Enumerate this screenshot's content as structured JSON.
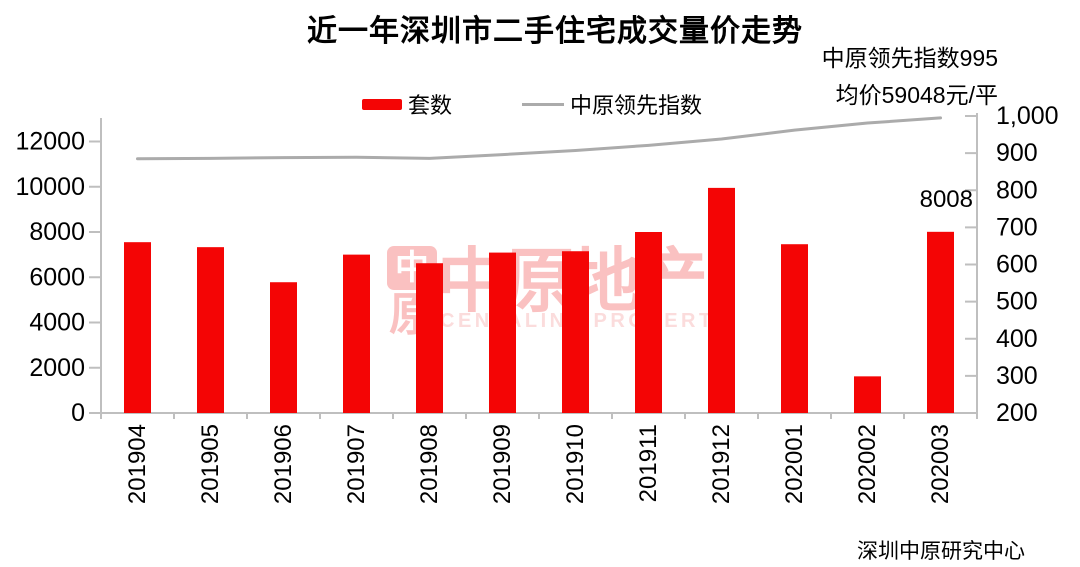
{
  "title": "近一年深圳市二手住宅成交量价走势",
  "annotation": {
    "lines": [
      "中原领先指数995",
      "均价59048元/平"
    ]
  },
  "footer": "深圳中原研究中心",
  "watermark": {
    "logo_top": "中",
    "logo_bottom": "原",
    "text": "中原地产",
    "subtext": "CENTALINE PROPERTY"
  },
  "colors": {
    "bar": "#f40505",
    "line": "#ababab",
    "axis": "#bfbfbf",
    "text": "#000000",
    "watermark_strong": "#fac1c1",
    "watermark_light": "#fbdcdc"
  },
  "chart_data": {
    "type": "combo-bar-line",
    "title": "近一年深圳市二手住宅成交量价走势",
    "categories": [
      "201904",
      "201905",
      "201906",
      "201907",
      "201908",
      "201909",
      "201910",
      "201911",
      "201912",
      "202001",
      "202002",
      "202003"
    ],
    "series": [
      {
        "name": "套数",
        "type": "bar",
        "axis": "left",
        "color": "#f40505",
        "values": [
          7550,
          7330,
          5780,
          7000,
          6620,
          7090,
          7150,
          8000,
          9950,
          7460,
          1620,
          8008
        ]
      },
      {
        "name": "中原领先指数",
        "type": "line",
        "axis": "right",
        "color": "#ababab",
        "values": [
          885,
          886,
          888,
          889,
          886,
          896,
          907,
          921,
          938,
          962,
          981,
          995
        ]
      }
    ],
    "left_axis": {
      "min": 0,
      "max": 12000,
      "step": 2000,
      "tick_labels": [
        "0",
        "2000",
        "4000",
        "6000",
        "8000",
        "10000",
        "12000"
      ]
    },
    "right_axis": {
      "min": 200,
      "max": 1000,
      "step": 100,
      "tick_labels": [
        "200",
        "300",
        "400",
        "500",
        "600",
        "700",
        "800",
        "900",
        "1,000"
      ]
    },
    "bar_callout": {
      "category": "202003",
      "text": "8008"
    },
    "legend_position": "top-center",
    "grid": false
  }
}
